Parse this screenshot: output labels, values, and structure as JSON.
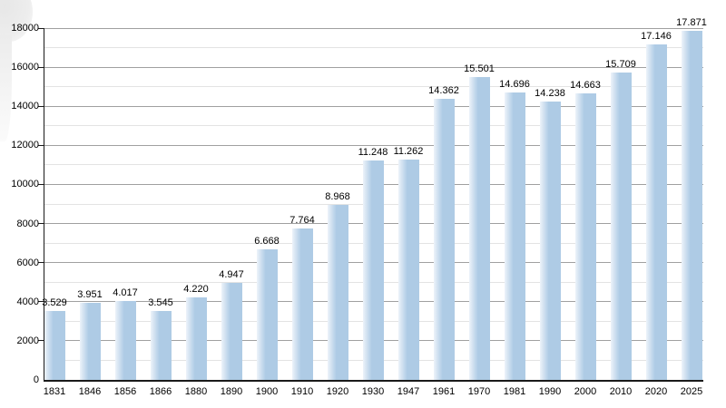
{
  "chart_data": {
    "type": "bar",
    "title": "",
    "xlabel": "",
    "ylabel": "",
    "categories": [
      "1831",
      "1846",
      "1856",
      "1866",
      "1880",
      "1890",
      "1900",
      "1910",
      "1920",
      "1930",
      "1947",
      "1961",
      "1970",
      "1981",
      "1990",
      "2000",
      "2010",
      "2020",
      "2025"
    ],
    "values": [
      3529,
      3951,
      4017,
      3545,
      4220,
      4947,
      6668,
      7764,
      8968,
      11248,
      11262,
      14362,
      15501,
      14696,
      14238,
      14663,
      15709,
      17146,
      17871
    ],
    "value_labels": [
      "3.529",
      "3.951",
      "4.017",
      "3.545",
      "4.220",
      "4.947",
      "6.668",
      "7.764",
      "8.968",
      "11.248",
      "11.262",
      "14.362",
      "15.501",
      "14.696",
      "14.238",
      "14.663",
      "15.709",
      "17.146",
      "17.871"
    ],
    "ylim": [
      0,
      18000
    ],
    "y_major_step": 2000,
    "y_minor_step": 1000,
    "y_tick_labels": [
      "0",
      "2000",
      "4000",
      "6000",
      "8000",
      "10000",
      "12000",
      "14000",
      "16000",
      "18000"
    ],
    "grid": true,
    "legend_position": "none",
    "colors": {
      "bar_main": "#aecbe5",
      "bar_edge_light": "#edf3fa",
      "grid_major": "#a0a0a0",
      "grid_minor": "#e3e3e3",
      "axis": "#1a1a1a",
      "text": "#000000"
    }
  }
}
